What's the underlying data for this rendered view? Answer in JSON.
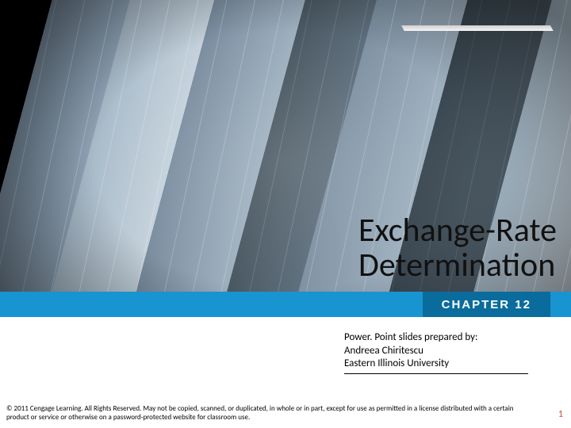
{
  "hero": {
    "title_line1": "Exchange-Rate",
    "title_line2": "Determination",
    "title_color": "#111111",
    "title_fontsize": 42
  },
  "chapter_bar": {
    "label": "CHAPTER 12",
    "bar_color": "#1894d1",
    "tab_color": "#0a6c9d",
    "label_color": "#ffffff"
  },
  "prepared_by": {
    "line1": "Power. Point slides prepared by:",
    "line2": "Andreea Chiritescu",
    "line3": "Eastern Illinois University"
  },
  "footer": {
    "copyright": "© 2011 Cengage Learning. All Rights Reserved. May not be copied, scanned, or duplicated, in whole or in part, except for use as permitted in a license distributed with a certain product or service or otherwise on a password-protected website for classroom use.",
    "page_number": "1",
    "page_number_color": "#c74f34"
  }
}
